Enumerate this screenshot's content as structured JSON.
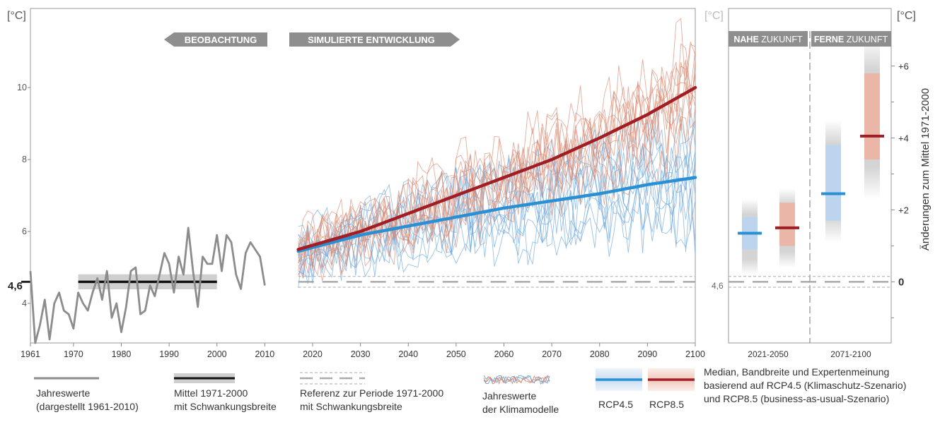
{
  "chart_data": {
    "type": "line",
    "main_panel": {
      "y_unit_left": "[°C]",
      "y_unit_right_top": "[°C]",
      "ylim": [
        2.9,
        12.2
      ],
      "xlim": [
        1961,
        2100
      ],
      "x_ticks": [
        1961,
        1970,
        1980,
        1990,
        2000,
        2010,
        2020,
        2030,
        2040,
        2050,
        2060,
        2070,
        2080,
        2090,
        2100
      ],
      "y_ticks": [
        4,
        6,
        8,
        10
      ],
      "reference_value_label": "4,6",
      "reference_value": 4.6,
      "banner_observation": "BEOBACHTUNG",
      "banner_simulation": "SIMULIERTE ENTWICKLUNG",
      "observation_series": {
        "name": "Jahreswerte (dargestellt 1961-2010)",
        "color": "#8c8c8c",
        "x": [
          1961,
          1962,
          1963,
          1964,
          1965,
          1966,
          1967,
          1968,
          1969,
          1970,
          1971,
          1972,
          1973,
          1974,
          1975,
          1976,
          1977,
          1978,
          1979,
          1980,
          1981,
          1982,
          1983,
          1984,
          1985,
          1986,
          1987,
          1988,
          1989,
          1990,
          1991,
          1992,
          1993,
          1994,
          1995,
          1996,
          1997,
          1998,
          1999,
          2000,
          2001,
          2002,
          2003,
          2004,
          2005,
          2006,
          2007,
          2008,
          2009,
          2010
        ],
        "y": [
          4.9,
          2.9,
          3.4,
          4.1,
          3.0,
          4.0,
          4.3,
          3.8,
          3.7,
          3.3,
          4.3,
          4.0,
          3.8,
          4.3,
          4.7,
          4.1,
          4.9,
          3.6,
          4.0,
          3.2,
          3.9,
          4.9,
          5.0,
          3.7,
          3.8,
          4.5,
          4.2,
          4.8,
          5.4,
          5.1,
          4.3,
          5.3,
          4.8,
          6.1,
          4.9,
          3.9,
          5.3,
          5.1,
          5.1,
          5.9,
          4.9,
          5.9,
          5.7,
          4.8,
          4.4,
          5.4,
          5.7,
          5.5,
          5.3,
          4.5
        ]
      },
      "mean_1971_2000": {
        "start": 1971,
        "end": 2000,
        "value": 4.6,
        "band": [
          4.45,
          4.75
        ]
      },
      "reference_band": {
        "start": 2017,
        "end": 2100,
        "value": 4.6,
        "band": [
          4.45,
          4.75
        ]
      },
      "rcp45_median": {
        "name": "RCP4.5",
        "color": "#2b8fd3",
        "x": [
          2017,
          2030,
          2040,
          2050,
          2060,
          2070,
          2080,
          2090,
          2100
        ],
        "y": [
          5.45,
          5.9,
          6.15,
          6.4,
          6.65,
          6.85,
          7.05,
          7.3,
          7.5
        ]
      },
      "rcp85_median": {
        "name": "RCP8.5",
        "color": "#a01e24",
        "x": [
          2017,
          2030,
          2040,
          2050,
          2060,
          2070,
          2080,
          2090,
          2100
        ],
        "y": [
          5.5,
          6.0,
          6.5,
          7.0,
          7.5,
          8.0,
          8.6,
          9.25,
          10.0
        ]
      }
    },
    "side_panel": {
      "y_unit_left": "[°C]",
      "y_unit_right": "[°C]",
      "ylabel_right": "Änderungen zum Mittel 1971-2000",
      "reference_label": "4,6",
      "right_ticks": [
        "+6",
        "+4",
        "+2",
        "0"
      ],
      "right_tick_values": [
        6,
        4,
        2,
        0
      ],
      "period_near": {
        "bold": "NAHE",
        "rest": "ZUKUNFT",
        "label": "2021-2050"
      },
      "period_far": {
        "bold": "FERNE",
        "rest": "ZUKUNFT",
        "label": "2071-2100"
      },
      "boxes": [
        {
          "period": "2021-2050",
          "scenario": "RCP4.5",
          "range": [
            0.2,
            2.3
          ],
          "band": [
            0.9,
            1.8
          ],
          "median": 1.35
        },
        {
          "period": "2021-2050",
          "scenario": "RCP8.5",
          "range": [
            0.4,
            2.6
          ],
          "band": [
            1.0,
            2.2
          ],
          "median": 1.5
        },
        {
          "period": "2071-2100",
          "scenario": "RCP4.5",
          "range": [
            1.1,
            4.5
          ],
          "band": [
            1.7,
            3.8
          ],
          "median": 2.45
        },
        {
          "period": "2071-2100",
          "scenario": "RCP8.5",
          "range": [
            2.3,
            6.8
          ],
          "band": [
            3.4,
            5.8
          ],
          "median": 4.05
        }
      ]
    }
  },
  "legend": {
    "obs_line1": "Jahreswerte",
    "obs_line2": "(dargestellt 1961-2010)",
    "mean_line1": "Mittel 1971-2000",
    "mean_line2": "mit Schwankungsbreite",
    "ref_line1": "Referenz zur Periode 1971-2000",
    "ref_line2": "mit Schwankungsbreite",
    "models_line1": "Jahreswerte",
    "models_line2": "der Klimamodelle",
    "rcp45": "RCP4.5",
    "rcp85": "RCP8.5",
    "median_line1": "Median, Bandbreite und Expertenmeinung",
    "median_line2": "basierend auf RCP4.5 (Klimaschutz-Szenario)",
    "median_line3": "und RCP8.5 (business-as-usual-Szenario)"
  }
}
